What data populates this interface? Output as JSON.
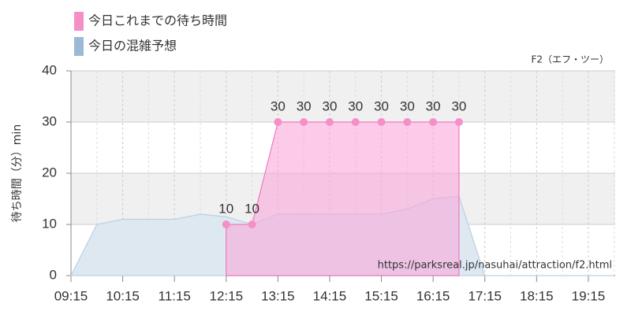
{
  "chart_data": {
    "type": "area",
    "subtitle": "F2（エフ・ツー）",
    "y_label": "待ち時間（分）min",
    "annotation": "https://parksreal.jp/nasuhai/attraction/f2.html",
    "xlim": [
      9.25,
      19.77
    ],
    "ylim": [
      0,
      40
    ],
    "yticks": [
      0,
      10,
      20,
      30,
      40
    ],
    "xticks": [
      {
        "value": 9.25,
        "label": "09:15"
      },
      {
        "value": 10.25,
        "label": "10:15"
      },
      {
        "value": 11.25,
        "label": "11:15"
      },
      {
        "value": 12.25,
        "label": "12:15"
      },
      {
        "value": 13.25,
        "label": "13:15"
      },
      {
        "value": 14.25,
        "label": "14:15"
      },
      {
        "value": 15.25,
        "label": "15:15"
      },
      {
        "value": 16.25,
        "label": "16:15"
      },
      {
        "value": 17.25,
        "label": "17:15"
      },
      {
        "value": 18.25,
        "label": "18:15"
      },
      {
        "value": 19.25,
        "label": "19:15"
      }
    ],
    "grid": true,
    "series": [
      {
        "name": "今日の混雑予想",
        "color": "#9bbad6",
        "markers": false,
        "x": [
          9.25,
          9.75,
          10.25,
          10.75,
          11.25,
          11.75,
          12.25,
          12.75,
          13.25,
          13.75,
          14.25,
          14.75,
          15.25,
          15.75,
          16.25,
          16.75,
          17.25,
          17.75,
          18.25,
          18.75,
          19.25,
          19.75
        ],
        "values": [
          0,
          10,
          11,
          11,
          11,
          12,
          11.5,
          10,
          12,
          12,
          12,
          12,
          12,
          13,
          15,
          15.5,
          0,
          0,
          0,
          0,
          0,
          0
        ]
      },
      {
        "name": "今日これまでの待ち時間",
        "color": "#f48fc8",
        "markers": true,
        "x": [
          12.25,
          12.75,
          13.25,
          13.75,
          14.25,
          14.75,
          15.25,
          15.75,
          16.25,
          16.75
        ],
        "values": [
          10,
          10,
          30,
          30,
          30,
          30,
          30,
          30,
          30,
          30
        ]
      }
    ]
  }
}
